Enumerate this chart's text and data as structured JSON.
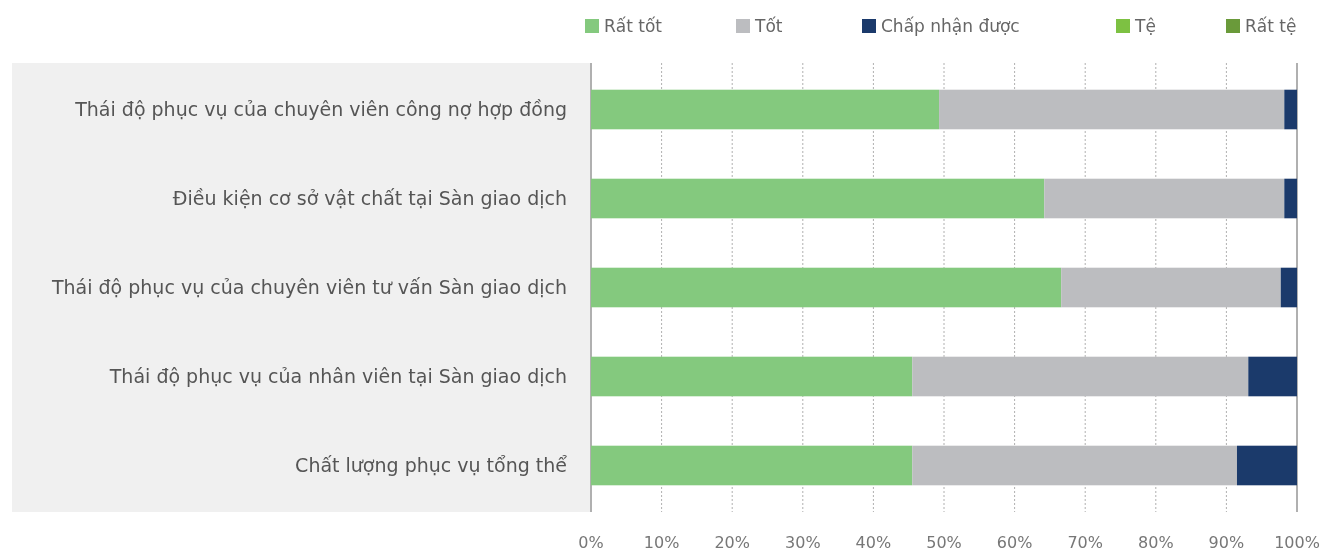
{
  "chart_data": {
    "type": "bar",
    "orientation": "horizontal",
    "stacked": true,
    "categories": [
      "Thái độ phục vụ của chuyên viên công nợ hợp đồng",
      "Điều kiện cơ sở vật chất tại Sàn giao dịch",
      "Thái độ phục vụ của chuyên viên tư vấn Sàn giao dịch",
      "Thái độ phục vụ của nhân viên tại Sàn giao dịch",
      "Chất lượng phục vụ tổng thể"
    ],
    "series": [
      {
        "name": "Rất tốt",
        "color": "#84c97e",
        "values": [
          49.3,
          64.2,
          66.6,
          45.5,
          45.5
        ]
      },
      {
        "name": "Tốt",
        "color": "#bcbdc0",
        "values": [
          48.9,
          34.0,
          31.1,
          47.6,
          46.0
        ]
      },
      {
        "name": "Chấp nhận được",
        "color": "#1b3a6b",
        "values": [
          1.8,
          1.8,
          2.3,
          6.9,
          8.5
        ]
      },
      {
        "name": "Tệ",
        "color": "#7dc142",
        "values": [
          0,
          0,
          0,
          0,
          0
        ]
      },
      {
        "name": "Rất tệ",
        "color": "#6a9a3a",
        "values": [
          0,
          0,
          0,
          0,
          0
        ]
      }
    ],
    "xlim": [
      0,
      100
    ],
    "xticks": [
      {
        "value": 0,
        "label": "0%"
      },
      {
        "value": 10,
        "label": "10%"
      },
      {
        "value": 20,
        "label": "20%"
      },
      {
        "value": 30,
        "label": "30%"
      },
      {
        "value": 40,
        "label": "40%"
      },
      {
        "value": 50,
        "label": "50%"
      },
      {
        "value": 60,
        "label": "60%"
      },
      {
        "value": 70,
        "label": "70%"
      },
      {
        "value": 80,
        "label": "80%"
      },
      {
        "value": 90,
        "label": "90%"
      },
      {
        "value": 100,
        "label": "100%"
      }
    ],
    "grid": "x",
    "legend": "top right"
  }
}
